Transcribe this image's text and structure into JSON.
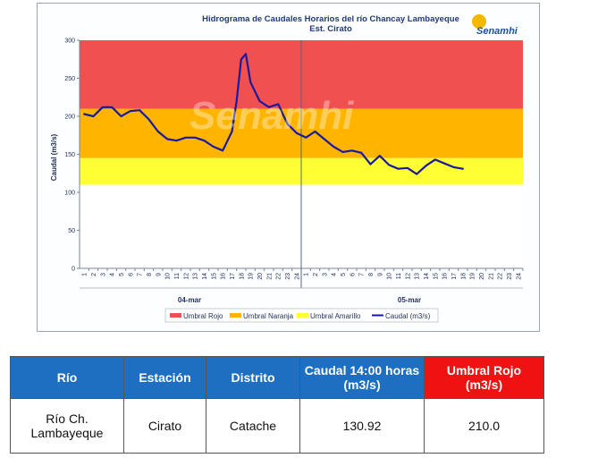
{
  "chart_data": {
    "type": "line",
    "title": "Hidrograma de Caudales Horarios del río Chancay Lambayeque",
    "subtitle": "Est. Cirato",
    "ylabel": "Caudal  (m3/s)",
    "ylim": [
      0,
      300
    ],
    "yticks": [
      0,
      50,
      100,
      150,
      200,
      250,
      300
    ],
    "x_hours": [
      "1",
      "2",
      "3",
      "4",
      "5",
      "6",
      "7",
      "8",
      "9",
      "10",
      "11",
      "12",
      "13",
      "14",
      "15",
      "16",
      "17",
      "18",
      "19",
      "20",
      "21",
      "22",
      "23",
      "24",
      "1",
      "2",
      "3",
      "4",
      "5",
      "6",
      "7",
      "8",
      "9",
      "10",
      "11",
      "12",
      "13",
      "14",
      "15",
      "16",
      "17",
      "18",
      "19",
      "20",
      "21",
      "22",
      "23",
      "24"
    ],
    "day_labels": [
      "04-mar",
      "05-mar"
    ],
    "thresholds": [
      {
        "name": "Umbral Rojo",
        "from": 210,
        "to": 300,
        "color": "#f05050"
      },
      {
        "name": "Umbral Naranja",
        "from": 145,
        "to": 210,
        "color": "#ffb400"
      },
      {
        "name": "Umbral Amarillo",
        "from": 110,
        "to": 145,
        "color": "#ffff33"
      }
    ],
    "series": [
      {
        "name": "Caudal (m3/s)",
        "color": "#1a1aa0",
        "x": [
          1,
          2,
          3,
          4,
          5,
          6,
          7,
          8,
          9,
          10,
          11,
          12,
          13,
          14,
          15,
          16,
          17,
          17.5,
          18,
          18.5,
          19,
          20,
          21,
          22,
          23,
          24,
          25,
          26,
          27,
          28,
          29,
          30,
          31,
          32,
          33,
          34,
          35,
          36,
          37,
          38,
          39,
          40,
          41,
          42,
          43,
          44
        ],
        "values": [
          203,
          200,
          212,
          212,
          200,
          207,
          208,
          196,
          180,
          170,
          168,
          172,
          172,
          168,
          160,
          155,
          180,
          220,
          275,
          282,
          245,
          220,
          212,
          216,
          190,
          178,
          172,
          180,
          170,
          160,
          153,
          155,
          152,
          137,
          148,
          136,
          131,
          132,
          124,
          135,
          143,
          138,
          133,
          131,
          null,
          null
        ]
      }
    ]
  },
  "legend": [
    "Umbral Rojo",
    "Umbral Naranja",
    "Umbral Amarillo",
    "Caudal (m3/s)"
  ],
  "logo": {
    "text": "Senamhi",
    "watermark": "Senamhi"
  },
  "table": {
    "headers": [
      "Río",
      "Estación",
      "Distrito",
      "Caudal 14:00 horas (m3/s)",
      "Umbral Rojo (m3/s)"
    ],
    "row": [
      "Río Ch. Lambayeque",
      "Cirato",
      "Catache",
      "130.92",
      "210.0"
    ]
  }
}
